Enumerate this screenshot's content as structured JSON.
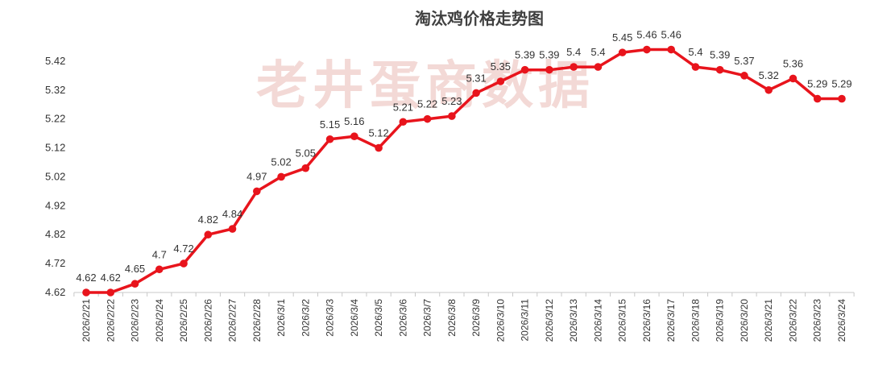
{
  "chart_data": {
    "type": "line",
    "title": "淘汰鸡价格走势图",
    "watermark": "老井蛋商数据",
    "xlabel": "",
    "ylabel": "",
    "ylim": [
      4.62,
      5.52
    ],
    "yticks": [
      4.62,
      4.72,
      4.82,
      4.92,
      5.02,
      5.12,
      5.22,
      5.32,
      5.42
    ],
    "grid": false,
    "legend": "none",
    "line_color": "#e8141c",
    "categories": [
      "2026/2/21",
      "2026/2/22",
      "2026/2/23",
      "2026/2/24",
      "2026/2/25",
      "2026/2/26",
      "2026/2/27",
      "2026/2/28",
      "2026/3/1",
      "2026/3/2",
      "2026/3/3",
      "2026/3/4",
      "2026/3/5",
      "2026/3/6",
      "2026/3/7",
      "2026/3/8",
      "2026/3/9",
      "2026/3/10",
      "2026/3/11",
      "2026/3/12",
      "2026/3/13",
      "2026/3/14",
      "2026/3/15",
      "2026/3/16",
      "2026/3/17",
      "2026/3/18",
      "2026/3/19",
      "2026/3/20",
      "2026/3/21",
      "2026/3/22",
      "2026/3/23",
      "2026/3/24"
    ],
    "series": [
      {
        "values": [
          4.62,
          4.62,
          4.65,
          4.7,
          4.72,
          4.82,
          4.84,
          4.97,
          5.02,
          5.05,
          5.15,
          5.16,
          5.12,
          5.21,
          5.22,
          5.23,
          5.31,
          5.35,
          5.39,
          5.39,
          5.4,
          5.4,
          5.45,
          5.46,
          5.46,
          5.4,
          5.39,
          5.37,
          5.32,
          5.36,
          5.29,
          5.29
        ]
      }
    ]
  }
}
